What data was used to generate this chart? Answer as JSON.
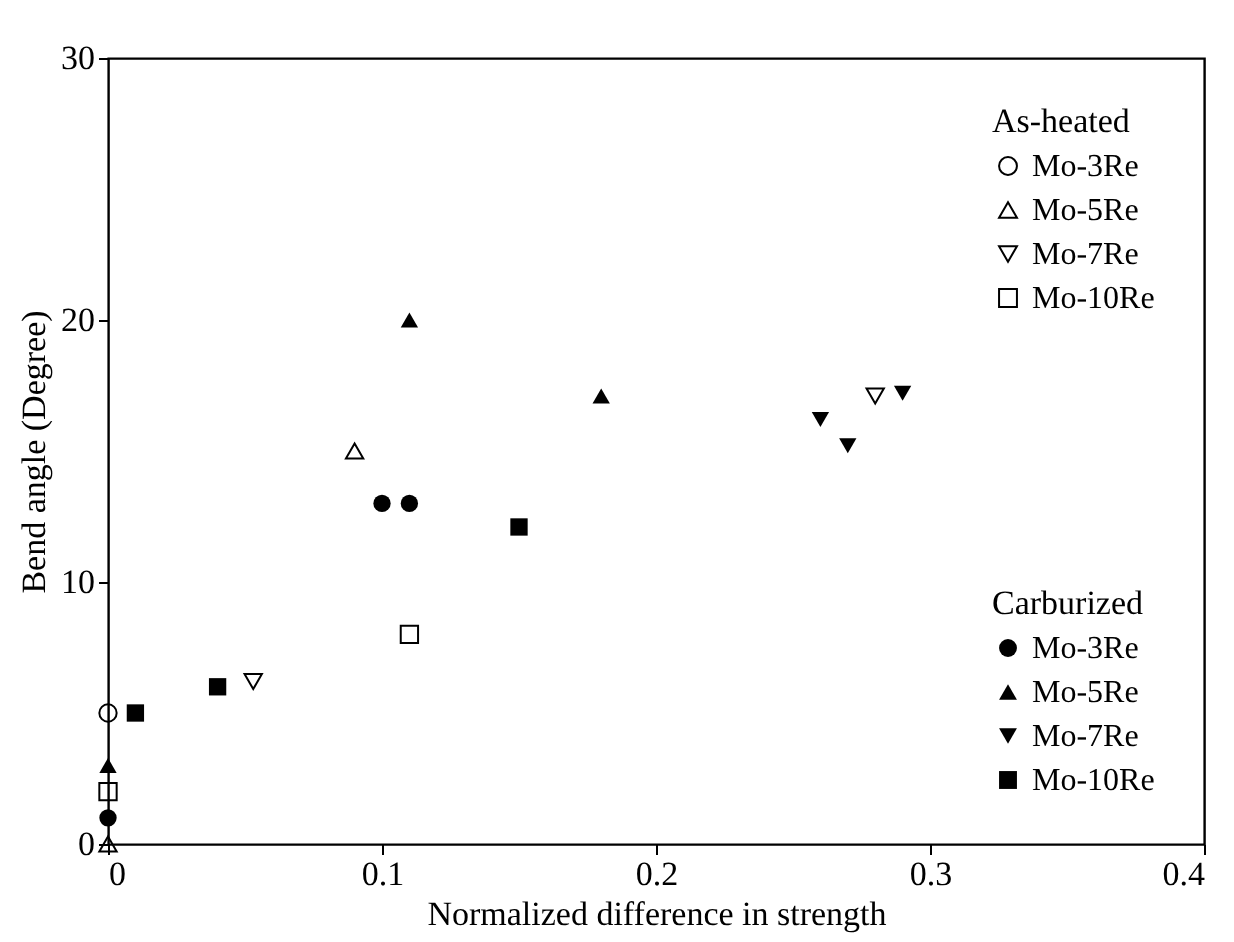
{
  "chart_data": {
    "type": "scatter",
    "xlabel": "Normalized difference in strength",
    "ylabel": "Bend angle (Degree)",
    "xlim": [
      0,
      0.4
    ],
    "xticks": [
      0,
      0.1,
      0.2,
      0.3,
      0.4
    ],
    "ylim": [
      0,
      30
    ],
    "yticks": [
      0,
      10,
      20,
      30
    ],
    "grid": false,
    "legend": "right",
    "legend_title": [
      "As-heated",
      "Carburized"
    ],
    "series": [
      {
        "name": "Mo-3Re",
        "color": "#000000",
        "marker": "circle",
        "x": [
          0
        ],
        "values": [
          5
        ]
      },
      {
        "name": "Mo-5Re",
        "color": "#000000",
        "marker": "triangle",
        "x": [
          0.09,
          0
        ],
        "values": [
          15,
          0
        ]
      },
      {
        "name": "Mo-7Re",
        "color": "#000000",
        "marker": "triangle-down",
        "x": [
          0.053,
          0.28
        ],
        "values": [
          6.2,
          17.1
        ]
      },
      {
        "name": "Mo-10Re",
        "color": "#000000",
        "marker": "square",
        "x": [
          0.11,
          0
        ],
        "values": [
          8,
          2
        ]
      },
      {
        "name": "Mo-3Re",
        "color": "#000000",
        "marker": "circle",
        "x": [
          0.1,
          0.11,
          0
        ],
        "values": [
          13,
          13,
          1
        ]
      },
      {
        "name": "Mo-5Re",
        "color": "#000000",
        "marker": "triangle",
        "x": [
          0.11,
          0.18,
          0
        ],
        "values": [
          20,
          17.1,
          3
        ]
      },
      {
        "name": "Mo-7Re",
        "color": "#000000",
        "marker": "triangle-down",
        "x": [
          0.26,
          0.27,
          0.29
        ],
        "values": [
          16.2,
          15.2,
          17.2
        ]
      },
      {
        "name": "Mo-10Re",
        "color": "#000000",
        "marker": "square",
        "x": [
          0.01,
          0.04,
          0.15
        ],
        "values": [
          5,
          6,
          12.1
        ]
      }
    ]
  }
}
